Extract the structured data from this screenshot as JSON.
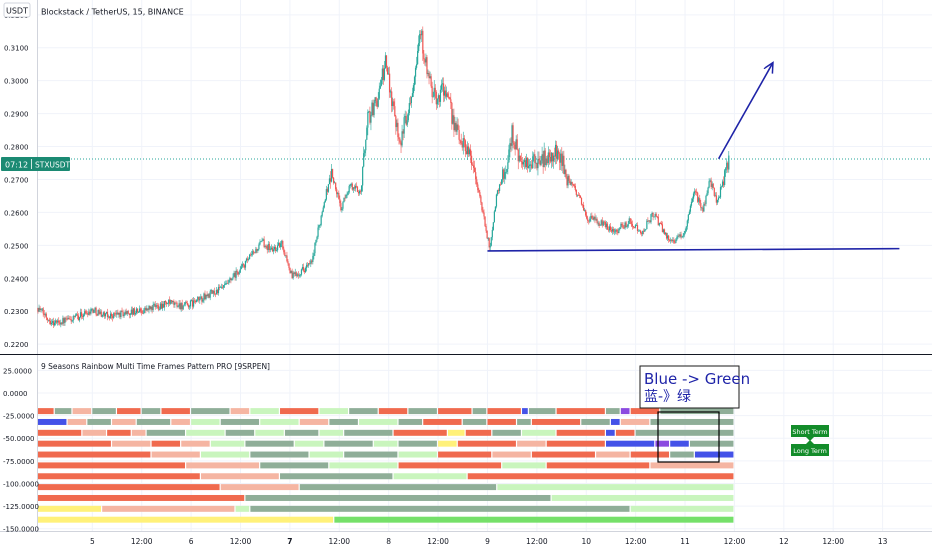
{
  "header": {
    "currency_badge": "USDT",
    "symbol_line": "Blockstack / TetherUS, 15, BINANCE",
    "indicator_title": "9 Seasons Rainbow Multi Time Frames Pattern PRO [9SRPEN]"
  },
  "price_badge": {
    "time": "07:12",
    "label": "STXUSDT"
  },
  "annotation": {
    "title": "Blue -> Green",
    "subtitle": "蓝-》绿"
  },
  "tags": {
    "short": "Short Term",
    "long": "Long Term"
  },
  "colors": {
    "up": "#26a69a",
    "down": "#ef5350",
    "trendline": "#1f24a8",
    "badge": "#1b8a73",
    "tag": "#138c2a",
    "red": "#f06a4e",
    "salmon": "#f5b5a2",
    "grey_green": "#8fae98",
    "light_green": "#c9f5bd",
    "bright_green": "#75e06a",
    "yellow": "#fff17a",
    "blue": "#4452e8",
    "violet": "#8b4ae0"
  },
  "chart_data": [
    {
      "type": "candlestick",
      "title": "Blockstack / TetherUS, 15, BINANCE",
      "y_ticks": [
        0.22,
        0.23,
        0.24,
        0.25,
        0.26,
        0.27,
        0.28,
        0.29,
        0.3,
        0.31,
        0.32
      ],
      "y_tick_labels": [
        "0.2200",
        "0.2300",
        "0.2400",
        "0.2500",
        "0.2600",
        "0.2700",
        "0.2800",
        "0.2900",
        "0.3000",
        "0.3100",
        "0.3200"
      ],
      "ylim": [
        0.217,
        0.3245
      ],
      "x_day_index_range": [
        4.45,
        13.5
      ],
      "x_ticks": [
        {
          "x": 5.0,
          "label": "5",
          "bold": false
        },
        {
          "x": 5.5,
          "label": "12:00",
          "bold": false
        },
        {
          "x": 6.0,
          "label": "6",
          "bold": false
        },
        {
          "x": 6.5,
          "label": "12:00",
          "bold": false
        },
        {
          "x": 7.0,
          "label": "7",
          "bold": true
        },
        {
          "x": 7.5,
          "label": "12:00",
          "bold": false
        },
        {
          "x": 8.0,
          "label": "8",
          "bold": false
        },
        {
          "x": 8.5,
          "label": "12:00",
          "bold": false
        },
        {
          "x": 9.0,
          "label": "9",
          "bold": false
        },
        {
          "x": 9.5,
          "label": "12:00",
          "bold": false
        },
        {
          "x": 10.0,
          "label": "10",
          "bold": false
        },
        {
          "x": 10.5,
          "label": "12:00",
          "bold": false
        },
        {
          "x": 11.0,
          "label": "11",
          "bold": false
        },
        {
          "x": 11.5,
          "label": "12:00",
          "bold": false
        },
        {
          "x": 12.0,
          "label": "12",
          "bold": false
        },
        {
          "x": 12.5,
          "label": "12:00",
          "bold": false
        },
        {
          "x": 13.0,
          "label": "13",
          "bold": false
        }
      ],
      "last_price": 0.2762,
      "path_anchors": [
        [
          4.45,
          0.231
        ],
        [
          4.6,
          0.2265
        ],
        [
          4.8,
          0.2275
        ],
        [
          5.0,
          0.2305
        ],
        [
          5.15,
          0.2285
        ],
        [
          5.35,
          0.2295
        ],
        [
          5.55,
          0.2305
        ],
        [
          5.75,
          0.2325
        ],
        [
          5.95,
          0.2315
        ],
        [
          6.15,
          0.2345
        ],
        [
          6.35,
          0.2375
        ],
        [
          6.55,
          0.2445
        ],
        [
          6.72,
          0.251
        ],
        [
          6.82,
          0.2485
        ],
        [
          6.92,
          0.2505
        ],
        [
          7.02,
          0.2405
        ],
        [
          7.12,
          0.2425
        ],
        [
          7.22,
          0.2445
        ],
        [
          7.35,
          0.264
        ],
        [
          7.42,
          0.272
        ],
        [
          7.52,
          0.261
        ],
        [
          7.6,
          0.268
        ],
        [
          7.72,
          0.2665
        ],
        [
          7.78,
          0.288
        ],
        [
          7.88,
          0.294
        ],
        [
          7.97,
          0.3055
        ],
        [
          8.05,
          0.2915
        ],
        [
          8.12,
          0.2815
        ],
        [
          8.22,
          0.2945
        ],
        [
          8.32,
          0.3155
        ],
        [
          8.4,
          0.3005
        ],
        [
          8.48,
          0.2935
        ],
        [
          8.55,
          0.2985
        ],
        [
          8.7,
          0.2835
        ],
        [
          8.82,
          0.2785
        ],
        [
          8.92,
          0.265
        ],
        [
          9.02,
          0.249
        ],
        [
          9.1,
          0.2665
        ],
        [
          9.2,
          0.2745
        ],
        [
          9.25,
          0.2845
        ],
        [
          9.35,
          0.2735
        ],
        [
          9.5,
          0.2755
        ],
        [
          9.62,
          0.2765
        ],
        [
          9.72,
          0.2785
        ],
        [
          9.82,
          0.2695
        ],
        [
          9.92,
          0.2655
        ],
        [
          10.0,
          0.2585
        ],
        [
          10.15,
          0.2565
        ],
        [
          10.3,
          0.2545
        ],
        [
          10.45,
          0.2575
        ],
        [
          10.55,
          0.2535
        ],
        [
          10.68,
          0.2595
        ],
        [
          10.82,
          0.2525
        ],
        [
          10.92,
          0.2515
        ],
        [
          11.0,
          0.2545
        ],
        [
          11.1,
          0.2665
        ],
        [
          11.18,
          0.2605
        ],
        [
          11.25,
          0.2705
        ],
        [
          11.32,
          0.2625
        ],
        [
          11.4,
          0.2715
        ],
        [
          11.45,
          0.2765
        ]
      ],
      "trendline": {
        "from": [
          9.0,
          0.2483
        ],
        "to": [
          13.17,
          0.249
        ]
      },
      "arrow": {
        "from": [
          11.34,
          0.2763
        ],
        "to": [
          11.89,
          0.3055
        ]
      }
    },
    {
      "type": "heatmap",
      "title": "9 Seasons Rainbow Multi Time Frames Pattern PRO [9SRPEN]",
      "y_ticks": [
        25000,
        0,
        -25000,
        -50000,
        -75000,
        -100000,
        -125000,
        -150000
      ],
      "y_tick_labels": [
        "25.0000",
        "0.0000",
        "-25.0000",
        "-50.0000",
        "-75.0000",
        "-100.0000",
        "-125.0000",
        "-150.0000"
      ],
      "ylim": [
        -152500,
        42000
      ],
      "x_range": [
        4.45,
        11.49
      ],
      "rows": [
        {
          "y": -20000,
          "segments": [
            [
              "red",
              4.45,
              4.62
            ],
            [
              "grey_green",
              4.62,
              4.8
            ],
            [
              "salmon",
              4.8,
              5.0
            ],
            [
              "grey_green",
              5.0,
              5.25
            ],
            [
              "red",
              5.25,
              5.5
            ],
            [
              "grey_green",
              5.5,
              5.7
            ],
            [
              "red",
              5.7,
              6.0
            ],
            [
              "grey_green",
              6.0,
              6.4
            ],
            [
              "salmon",
              6.4,
              6.6
            ],
            [
              "light_green",
              6.6,
              6.9
            ],
            [
              "red",
              6.9,
              7.3
            ],
            [
              "light_green",
              7.3,
              7.6
            ],
            [
              "grey_green",
              7.6,
              7.9
            ],
            [
              "red",
              7.9,
              8.2
            ],
            [
              "grey_green",
              8.2,
              8.5
            ],
            [
              "red",
              8.5,
              8.85
            ],
            [
              "grey_green",
              8.85,
              9.0
            ],
            [
              "red",
              9.0,
              9.35
            ],
            [
              "blue",
              9.35,
              9.42
            ],
            [
              "grey_green",
              9.42,
              9.7
            ],
            [
              "red",
              9.7,
              10.2
            ],
            [
              "grey_green",
              10.2,
              10.35
            ],
            [
              "violet",
              10.35,
              10.45
            ],
            [
              "red",
              10.45,
              10.75
            ],
            [
              "grey_green",
              10.75,
              11.49
            ]
          ]
        },
        {
          "y": -32000,
          "segments": [
            [
              "blue",
              4.45,
              4.75
            ],
            [
              "salmon",
              4.75,
              4.95
            ],
            [
              "grey_green",
              4.95,
              5.2
            ],
            [
              "salmon",
              5.2,
              5.45
            ],
            [
              "grey_green",
              5.45,
              5.8
            ],
            [
              "salmon",
              5.8,
              6.0
            ],
            [
              "light_green",
              6.0,
              6.3
            ],
            [
              "grey_green",
              6.3,
              6.7
            ],
            [
              "light_green",
              6.7,
              7.1
            ],
            [
              "salmon",
              7.1,
              7.4
            ],
            [
              "grey_green",
              7.4,
              7.7
            ],
            [
              "light_green",
              7.7,
              8.1
            ],
            [
              "grey_green",
              8.1,
              8.35
            ],
            [
              "red",
              8.35,
              8.75
            ],
            [
              "grey_green",
              8.75,
              9.0
            ],
            [
              "red",
              9.0,
              9.3
            ],
            [
              "grey_green",
              9.3,
              9.45
            ],
            [
              "red",
              9.45,
              9.95
            ],
            [
              "grey_green",
              9.95,
              10.25
            ],
            [
              "blue",
              10.25,
              10.35
            ],
            [
              "salmon",
              10.35,
              10.65
            ],
            [
              "grey_green",
              10.65,
              11.49
            ]
          ]
        },
        {
          "y": -44000,
          "segments": [
            [
              "red",
              4.45,
              4.9
            ],
            [
              "salmon",
              4.9,
              5.15
            ],
            [
              "red",
              5.15,
              5.4
            ],
            [
              "salmon",
              5.4,
              5.55
            ],
            [
              "grey_green",
              5.55,
              5.95
            ],
            [
              "light_green",
              5.95,
              6.35
            ],
            [
              "grey_green",
              6.35,
              6.65
            ],
            [
              "light_green",
              6.65,
              6.95
            ],
            [
              "grey_green",
              6.95,
              7.3
            ],
            [
              "light_green",
              7.3,
              7.55
            ],
            [
              "grey_green",
              7.55,
              8.05
            ],
            [
              "red",
              8.05,
              8.6
            ],
            [
              "yellow",
              8.6,
              8.78
            ],
            [
              "red",
              8.78,
              9.05
            ],
            [
              "grey_green",
              9.05,
              9.35
            ],
            [
              "light_green",
              9.35,
              9.7
            ],
            [
              "red",
              9.7,
              10.2
            ],
            [
              "blue",
              10.2,
              10.3
            ],
            [
              "red",
              10.3,
              10.5
            ],
            [
              "grey_green",
              10.5,
              11.49
            ]
          ]
        },
        {
          "y": -56000,
          "segments": [
            [
              "red",
              4.45,
              5.2
            ],
            [
              "salmon",
              5.2,
              5.6
            ],
            [
              "red",
              5.6,
              5.9
            ],
            [
              "salmon",
              5.9,
              6.2
            ],
            [
              "light_green",
              6.2,
              6.55
            ],
            [
              "grey_green",
              6.55,
              7.05
            ],
            [
              "light_green",
              7.05,
              7.35
            ],
            [
              "grey_green",
              7.35,
              7.85
            ],
            [
              "light_green",
              7.85,
              8.1
            ],
            [
              "grey_green",
              8.1,
              8.5
            ],
            [
              "yellow",
              8.5,
              8.7
            ],
            [
              "red",
              8.7,
              9.3
            ],
            [
              "salmon",
              9.3,
              9.6
            ],
            [
              "red",
              9.6,
              10.2
            ],
            [
              "blue",
              10.2,
              10.7
            ],
            [
              "violet",
              10.7,
              10.85
            ],
            [
              "blue",
              10.85,
              11.05
            ],
            [
              "grey_green",
              11.05,
              11.49
            ]
          ]
        },
        {
          "y": -68000,
          "segments": [
            [
              "red",
              4.45,
              5.6
            ],
            [
              "salmon",
              5.6,
              6.1
            ],
            [
              "light_green",
              6.1,
              6.6
            ],
            [
              "grey_green",
              6.6,
              7.2
            ],
            [
              "light_green",
              7.2,
              7.55
            ],
            [
              "grey_green",
              7.55,
              8.1
            ],
            [
              "light_green",
              8.1,
              8.5
            ],
            [
              "red",
              8.5,
              9.05
            ],
            [
              "salmon",
              9.05,
              9.45
            ],
            [
              "red",
              9.45,
              10.1
            ],
            [
              "salmon",
              10.1,
              10.45
            ],
            [
              "red",
              10.45,
              10.85
            ],
            [
              "grey_green",
              10.85,
              11.1
            ],
            [
              "blue",
              11.1,
              11.49
            ]
          ]
        },
        {
          "y": -80000,
          "segments": [
            [
              "red",
              4.45,
              5.95
            ],
            [
              "salmon",
              5.95,
              6.7
            ],
            [
              "grey_green",
              6.7,
              7.4
            ],
            [
              "light_green",
              7.4,
              8.1
            ],
            [
              "red",
              8.1,
              9.15
            ],
            [
              "light_green",
              9.15,
              9.6
            ],
            [
              "red",
              9.6,
              10.65
            ],
            [
              "salmon",
              10.65,
              11.49
            ]
          ]
        },
        {
          "y": -92000,
          "segments": [
            [
              "red",
              4.45,
              6.1
            ],
            [
              "salmon",
              6.1,
              6.9
            ],
            [
              "grey_green",
              6.9,
              8.05
            ],
            [
              "light_green",
              8.05,
              8.8
            ],
            [
              "red",
              8.8,
              11.49
            ]
          ]
        },
        {
          "y": -104000,
          "segments": [
            [
              "red",
              4.45,
              6.3
            ],
            [
              "salmon",
              6.3,
              7.1
            ],
            [
              "grey_green",
              7.1,
              9.1
            ],
            [
              "light_green",
              9.1,
              11.49
            ]
          ]
        },
        {
          "y": -116000,
          "segments": [
            [
              "red",
              4.45,
              6.55
            ],
            [
              "grey_green",
              6.55,
              9.65
            ],
            [
              "light_green",
              9.65,
              11.49
            ]
          ]
        },
        {
          "y": -128000,
          "segments": [
            [
              "yellow",
              4.45,
              5.1
            ],
            [
              "salmon",
              5.1,
              6.45
            ],
            [
              "light_green",
              6.45,
              6.6
            ],
            [
              "grey_green",
              6.6,
              10.45
            ],
            [
              "light_green",
              10.45,
              11.49
            ]
          ]
        },
        {
          "y": -140000,
          "segments": [
            [
              "yellow",
              4.45,
              7.45
            ],
            [
              "bright_green",
              7.45,
              11.49
            ]
          ]
        }
      ]
    }
  ]
}
